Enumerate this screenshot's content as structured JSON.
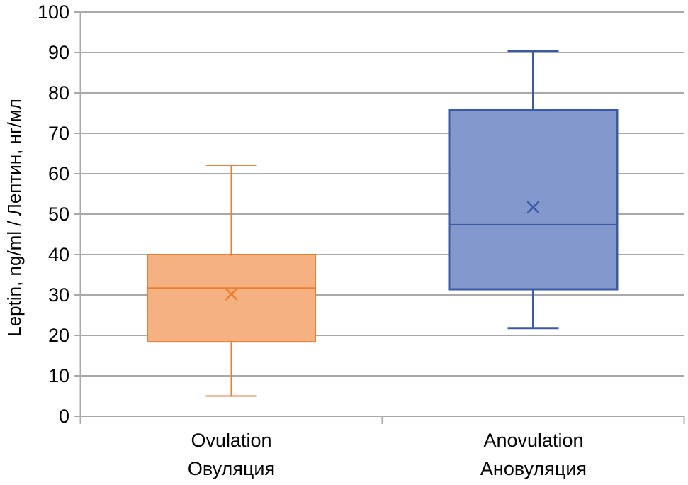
{
  "chart_data": {
    "type": "boxplot",
    "title": "",
    "xlabel": "",
    "ylabel": "Leptin, ng/ml / Лептин, нг/мл",
    "ylim": [
      0,
      100
    ],
    "ytick_step": 10,
    "yticks": [
      0,
      10,
      20,
      30,
      40,
      50,
      60,
      70,
      80,
      90,
      100
    ],
    "grid": true,
    "legend": false,
    "categories": [
      "Ovulation\nОвуляция",
      "Anovulation\nАновуляция"
    ],
    "series": [
      {
        "name": "Ovulation",
        "name_ru": "Овуляция",
        "min": 5.0,
        "q1": 18.4,
        "median": 31.7,
        "mean": 30.2,
        "q3": 40.0,
        "max": 62.1,
        "fill_color": "#F6B183",
        "border_color": "#ED7D31"
      },
      {
        "name": "Anovulation",
        "name_ru": "Ановуляция",
        "min": 21.8,
        "q1": 31.4,
        "median": 47.4,
        "mean": 51.7,
        "q3": 75.7,
        "max": 90.4,
        "fill_color": "#8398CD",
        "border_color": "#3B5AA6"
      }
    ],
    "colors": {
      "gridline": "#A9A9A9",
      "axis_line": "#A9A9A9",
      "text": "#000000",
      "background": "#FFFFFF"
    }
  }
}
